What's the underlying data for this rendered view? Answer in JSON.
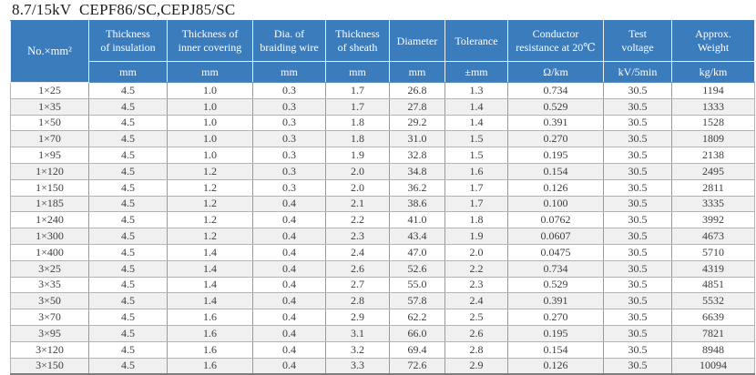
{
  "title": "8.7/15kV  CEPF86/SC,CEPJ85/SC",
  "colors": {
    "header_bg": "#3b7cbd",
    "header_text": "#ffffff",
    "row_alt_bg": "#f0f0f0",
    "grid_line": "#9a9a9a",
    "cell_text": "#3d3d3d",
    "title_text": "#1c1c1c"
  },
  "table": {
    "size_column_label": "No.×mm²",
    "columns": [
      {
        "label": "Thickness\nof insulation",
        "unit": "mm"
      },
      {
        "label": "Thickness of\ninner covering",
        "unit": "mm"
      },
      {
        "label": "Dia. of\nbraiding wire",
        "unit": "mm"
      },
      {
        "label": "Thickness\nof sheath",
        "unit": "mm"
      },
      {
        "label": "Diameter",
        "unit": "mm"
      },
      {
        "label": "Tolerance",
        "unit": "±mm"
      },
      {
        "label": "Conductor\nresistance at 20℃",
        "unit": "Ω/km"
      },
      {
        "label": "Test\nvoltage",
        "unit": "kV/5min"
      },
      {
        "label": "Approx.\nWeight",
        "unit": "kg/km"
      }
    ],
    "rows": [
      [
        "1×25",
        "4.5",
        "1.0",
        "0.3",
        "1.7",
        "26.8",
        "1.3",
        "0.734",
        "30.5",
        "1194"
      ],
      [
        "1×35",
        "4.5",
        "1.0",
        "0.3",
        "1.7",
        "27.8",
        "1.4",
        "0.529",
        "30.5",
        "1333"
      ],
      [
        "1×50",
        "4.5",
        "1.0",
        "0.3",
        "1.8",
        "29.2",
        "1.4",
        "0.391",
        "30.5",
        "1528"
      ],
      [
        "1×70",
        "4.5",
        "1.0",
        "0.3",
        "1.8",
        "31.0",
        "1.5",
        "0.270",
        "30.5",
        "1809"
      ],
      [
        "1×95",
        "4.5",
        "1.0",
        "0.3",
        "1.9",
        "32.8",
        "1.5",
        "0.195",
        "30.5",
        "2138"
      ],
      [
        "1×120",
        "4.5",
        "1.2",
        "0.3",
        "2.0",
        "34.8",
        "1.6",
        "0.154",
        "30.5",
        "2495"
      ],
      [
        "1×150",
        "4.5",
        "1.2",
        "0.3",
        "2.0",
        "36.2",
        "1.7",
        "0.126",
        "30.5",
        "2811"
      ],
      [
        "1×185",
        "4.5",
        "1.2",
        "0.4",
        "2.1",
        "38.6",
        "1.7",
        "0.100",
        "30.5",
        "3335"
      ],
      [
        "1×240",
        "4.5",
        "1.2",
        "0.4",
        "2.2",
        "41.0",
        "1.8",
        "0.0762",
        "30.5",
        "3992"
      ],
      [
        "1×300",
        "4.5",
        "1.2",
        "0.4",
        "2.3",
        "43.4",
        "1.9",
        "0.0607",
        "30.5",
        "4673"
      ],
      [
        "1×400",
        "4.5",
        "1.4",
        "0.4",
        "2.4",
        "47.0",
        "2.0",
        "0.0475",
        "30.5",
        "5710"
      ],
      [
        "3×25",
        "4.5",
        "1.4",
        "0.4",
        "2.6",
        "52.6",
        "2.2",
        "0.734",
        "30.5",
        "4319"
      ],
      [
        "3×35",
        "4.5",
        "1.4",
        "0.4",
        "2.7",
        "55.0",
        "2.3",
        "0.529",
        "30.5",
        "4851"
      ],
      [
        "3×50",
        "4.5",
        "1.4",
        "0.4",
        "2.8",
        "57.8",
        "2.4",
        "0.391",
        "30.5",
        "5532"
      ],
      [
        "3×70",
        "4.5",
        "1.6",
        "0.4",
        "2.9",
        "62.2",
        "2.5",
        "0.270",
        "30.5",
        "6639"
      ],
      [
        "3×95",
        "4.5",
        "1.6",
        "0.4",
        "3.1",
        "66.0",
        "2.6",
        "0.195",
        "30.5",
        "7821"
      ],
      [
        "3×120",
        "4.5",
        "1.6",
        "0.4",
        "3.2",
        "69.4",
        "2.8",
        "0.154",
        "30.5",
        "8948"
      ],
      [
        "3×150",
        "4.5",
        "1.6",
        "0.4",
        "3.3",
        "72.6",
        "2.9",
        "0.126",
        "30.5",
        "10094"
      ]
    ]
  }
}
